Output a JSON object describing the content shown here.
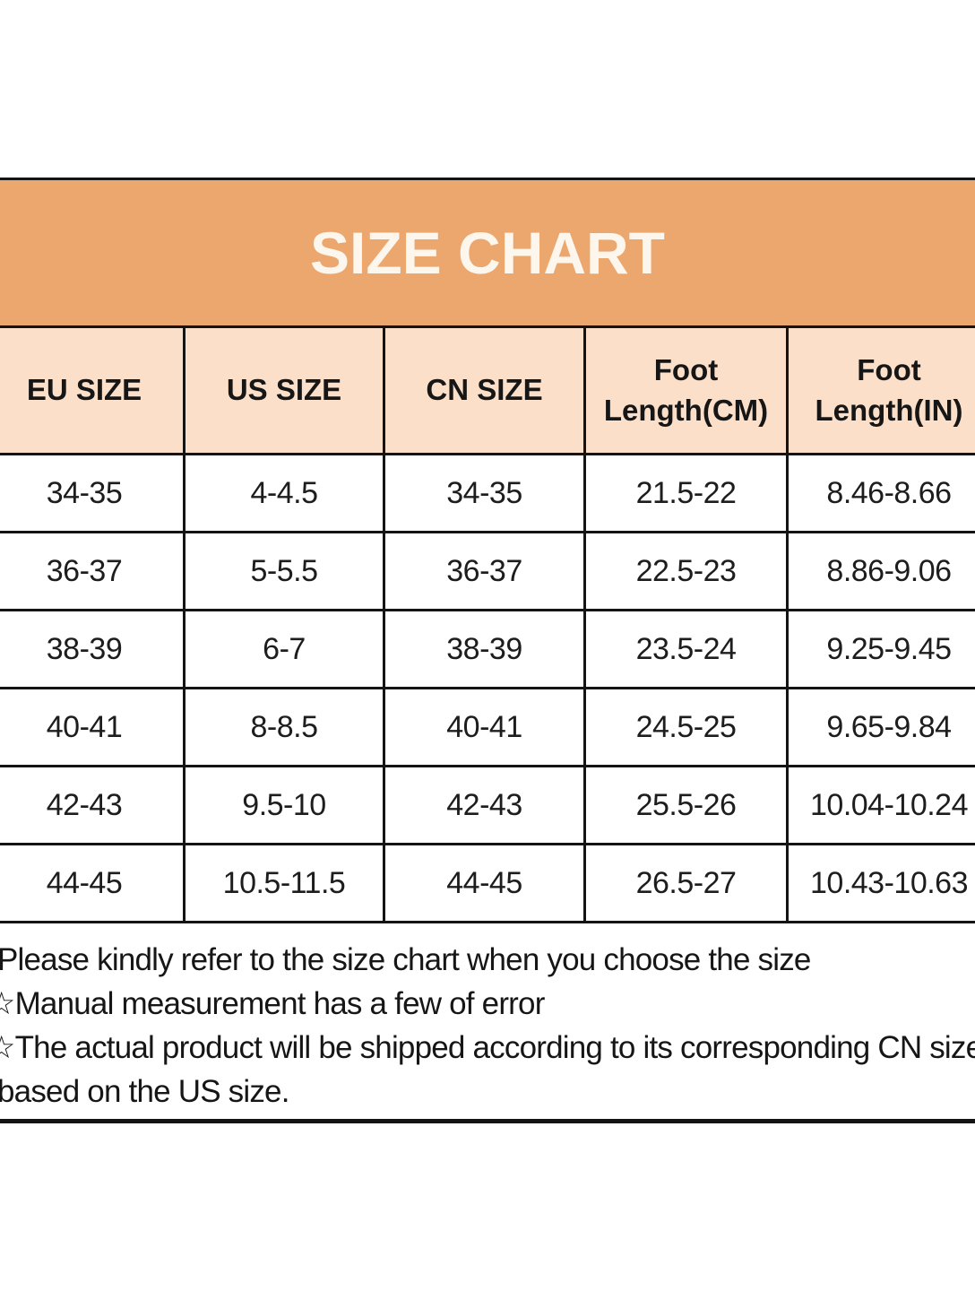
{
  "page": {
    "background": "#ffffff"
  },
  "banner": {
    "title": "SIZE CHART",
    "background": "#eca76f",
    "text_color": "#fcf6ec"
  },
  "size_table": {
    "border_color": "#141414",
    "header": {
      "background": "#fbdfc9",
      "columns": [
        {
          "label": "EU SIZE"
        },
        {
          "label": "US SIZE"
        },
        {
          "label": "CN SIZE"
        },
        {
          "label": "Foot\nLength(CM)"
        },
        {
          "label": "Foot\nLength(IN)"
        }
      ]
    },
    "rows": [
      [
        "34-35",
        "4-4.5",
        "34-35",
        "21.5-22",
        "8.46-8.66"
      ],
      [
        "36-37",
        "5-5.5",
        "36-37",
        "22.5-23",
        "8.86-9.06"
      ],
      [
        "38-39",
        "6-7",
        "38-39",
        "23.5-24",
        "9.25-9.45"
      ],
      [
        "40-41",
        "8-8.5",
        "40-41",
        "24.5-25",
        "9.65-9.84"
      ],
      [
        "42-43",
        "9.5-10",
        "42-43",
        "25.5-26",
        "10.04-10.24"
      ],
      [
        "44-45",
        "10.5-11.5",
        "44-45",
        "26.5-27",
        "10.43-10.63"
      ]
    ]
  },
  "notes": {
    "lines": [
      "Please kindly refer to the size chart when you choose the size",
      "☆Manual measurement has a few of error",
      "☆The actual product will be shipped according to its corresponding CN size",
      "based on the US size."
    ]
  }
}
